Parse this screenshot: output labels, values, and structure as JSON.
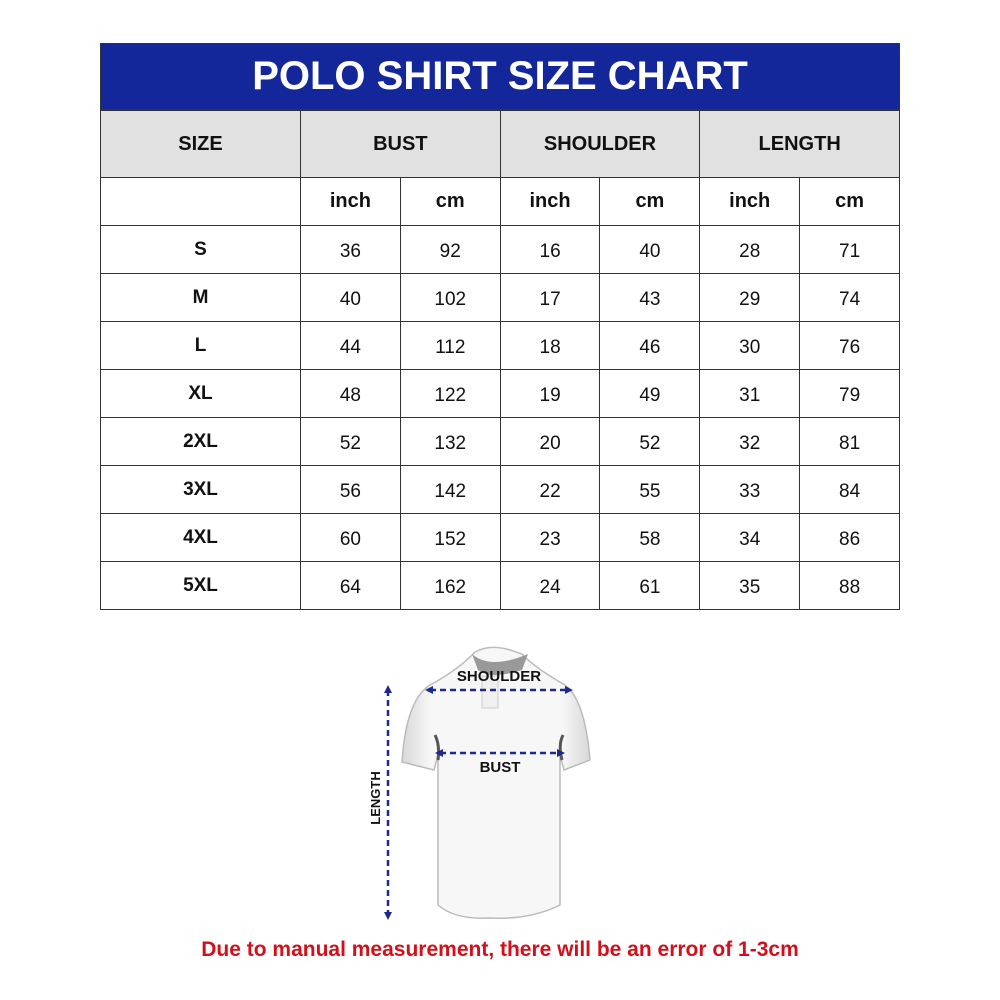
{
  "title": "POLO SHIRT SIZE CHART",
  "columns": {
    "size": "SIZE",
    "groups": [
      "BUST",
      "SHOULDER",
      "LENGTH"
    ],
    "units": [
      "inch",
      "cm",
      "inch",
      "cm",
      "inch",
      "cm"
    ]
  },
  "rows": [
    {
      "size": "S",
      "values": [
        "36",
        "92",
        "16",
        "40",
        "28",
        "71"
      ]
    },
    {
      "size": "M",
      "values": [
        "40",
        "102",
        "17",
        "43",
        "29",
        "74"
      ]
    },
    {
      "size": "L",
      "values": [
        "44",
        "112",
        "18",
        "46",
        "30",
        "76"
      ]
    },
    {
      "size": "XL",
      "values": [
        "48",
        "122",
        "19",
        "49",
        "31",
        "79"
      ]
    },
    {
      "size": "2XL",
      "values": [
        "52",
        "132",
        "20",
        "52",
        "32",
        "81"
      ]
    },
    {
      "size": "3XL",
      "values": [
        "56",
        "142",
        "22",
        "55",
        "33",
        "84"
      ]
    },
    {
      "size": "4XL",
      "values": [
        "60",
        "152",
        "23",
        "58",
        "34",
        "86"
      ]
    },
    {
      "size": "5XL",
      "values": [
        "64",
        "162",
        "24",
        "61",
        "35",
        "88"
      ]
    }
  ],
  "diagram": {
    "shoulder_label": "SHOULDER",
    "bust_label": "BUST",
    "length_label": "LENGTH"
  },
  "note": "Due to manual measurement, there will be an error of 1-3cm",
  "colors": {
    "header": "#13279a",
    "header_row": "#e1e1e1",
    "arrows": "#1b2a8c",
    "note": "#d3101a"
  }
}
